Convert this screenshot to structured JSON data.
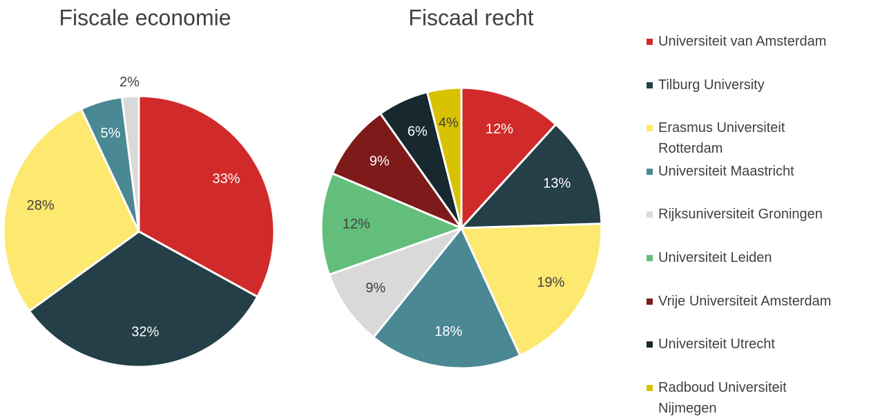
{
  "chart_data": [
    {
      "type": "pie",
      "title": "Fiscale economie",
      "categories": [
        "Universiteit van Amsterdam",
        "Tilburg University",
        "Erasmus Universiteit Rotterdam",
        "Universiteit Maastricht",
        "Rijksuniversiteit Groningen"
      ],
      "values": [
        33,
        32,
        28,
        5,
        2
      ],
      "colors": [
        "#d12a2a",
        "#243f47",
        "#fde870",
        "#4a8894",
        "#d9d9d9"
      ]
    },
    {
      "type": "pie",
      "title": "Fiscaal recht",
      "categories": [
        "Universiteit van Amsterdam",
        "Tilburg University",
        "Erasmus Universiteit Rotterdam",
        "Universiteit Maastricht",
        "Rijksuniversiteit Groningen",
        "Universiteit Leiden",
        "Vrije Universiteit Amsterdam",
        "Universiteit Utrecht",
        "Radboud Universiteit Nijmegen"
      ],
      "values": [
        12,
        13,
        19,
        18,
        9,
        12,
        9,
        6,
        4
      ],
      "colors": [
        "#d12a2a",
        "#243f47",
        "#fde870",
        "#4a8894",
        "#d9d9d9",
        "#63be7b",
        "#7f1a1a",
        "#17282e",
        "#d9c200"
      ],
      "legend": "right"
    }
  ]
}
